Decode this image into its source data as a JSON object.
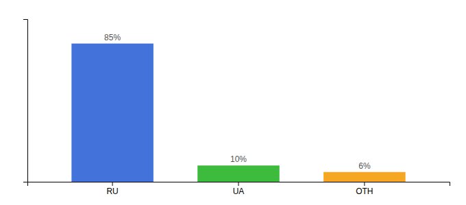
{
  "chart_data": {
    "type": "bar",
    "categories": [
      "RU",
      "UA",
      "OTH"
    ],
    "values": [
      85,
      10,
      6
    ],
    "value_labels": [
      "85%",
      "10%",
      "6%"
    ],
    "colors": [
      "#4472db",
      "#3dbb3d",
      "#f5a623"
    ],
    "ylim": [
      0,
      100
    ],
    "yticks": [],
    "data_labels": true,
    "tick_labels": "x"
  }
}
